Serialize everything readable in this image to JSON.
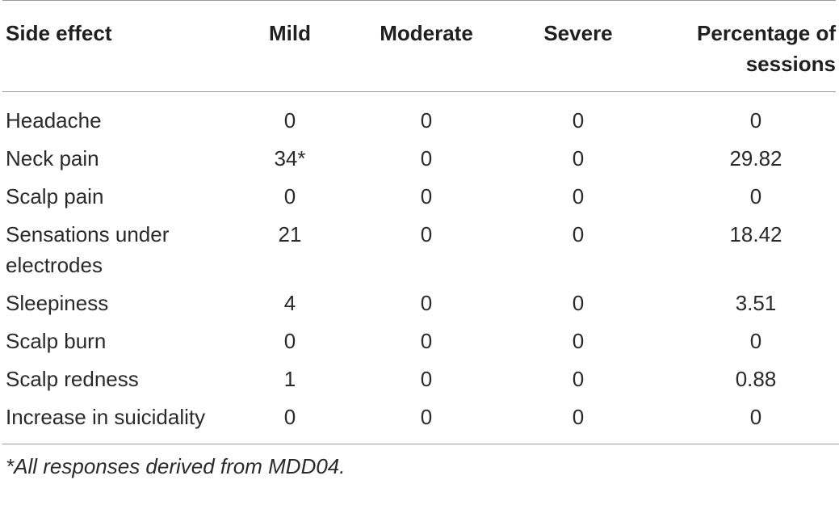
{
  "table": {
    "headers": [
      "Side effect",
      "Mild",
      "Moderate",
      "Severe",
      "Percentage of sessions"
    ],
    "rows": [
      [
        "Headache",
        "0",
        "0",
        "0",
        "0"
      ],
      [
        "Neck pain",
        "34*",
        "0",
        "0",
        "29.82"
      ],
      [
        "Scalp pain",
        "0",
        "0",
        "0",
        "0"
      ],
      [
        "Sensations under electrodes",
        "21",
        "0",
        "0",
        "18.42"
      ],
      [
        "Sleepiness",
        "4",
        "0",
        "0",
        "3.51"
      ],
      [
        "Scalp burn",
        "0",
        "0",
        "0",
        "0"
      ],
      [
        "Scalp redness",
        "1",
        "0",
        "0",
        "0.88"
      ],
      [
        "Increase in suicidality",
        "0",
        "0",
        "0",
        "0"
      ]
    ]
  },
  "footnote": "*All responses derived from MDD04."
}
